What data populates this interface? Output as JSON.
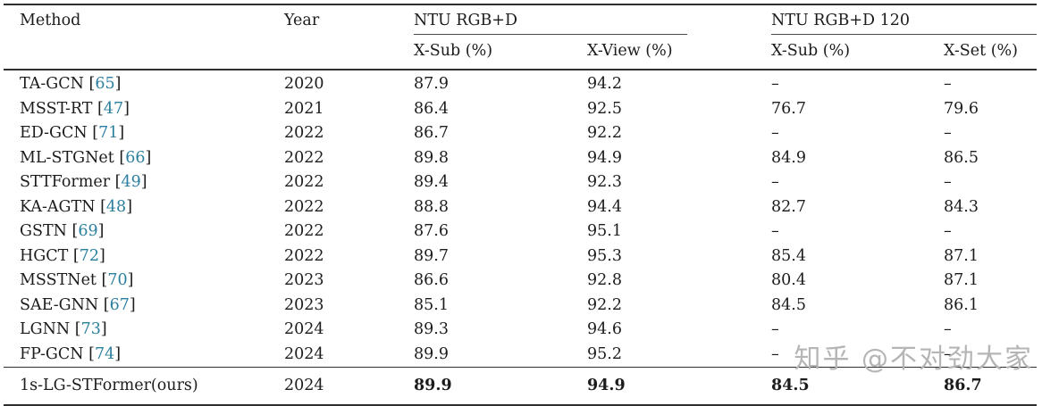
{
  "table": {
    "col_headers": {
      "method": "Method",
      "year": "Year"
    },
    "groups": [
      {
        "label": "NTU RGB+D",
        "subcols": [
          "X-Sub (%)",
          "X-View (%)"
        ]
      },
      {
        "label": "NTU RGB+D 120",
        "subcols": [
          "X-Sub (%)",
          "X-Set (%)"
        ]
      }
    ],
    "rows": [
      {
        "method": "TA-GCN",
        "ref": "65",
        "year": "2020",
        "values": [
          "87.9",
          "94.2",
          "–",
          "–"
        ]
      },
      {
        "method": "MSST-RT",
        "ref": "47",
        "year": "2021",
        "values": [
          "86.4",
          "92.5",
          "76.7",
          "79.6"
        ]
      },
      {
        "method": "ED-GCN",
        "ref": "71",
        "year": "2022",
        "values": [
          "86.7",
          "92.2",
          "–",
          "–"
        ]
      },
      {
        "method": "ML-STGNet",
        "ref": "66",
        "year": "2022",
        "values": [
          "89.8",
          "94.9",
          "84.9",
          "86.5"
        ]
      },
      {
        "method": "STTFormer",
        "ref": "49",
        "year": "2022",
        "values": [
          "89.4",
          "92.3",
          "–",
          "–"
        ]
      },
      {
        "method": "KA-AGTN",
        "ref": "48",
        "year": "2022",
        "values": [
          "88.8",
          "94.4",
          "82.7",
          "84.3"
        ]
      },
      {
        "method": "GSTN",
        "ref": "69",
        "year": "2022",
        "values": [
          "87.6",
          "95.1",
          "–",
          "–"
        ]
      },
      {
        "method": "HGCT",
        "ref": "72",
        "year": "2022",
        "values": [
          "89.7",
          "95.3",
          "85.4",
          "87.1"
        ]
      },
      {
        "method": "MSSTNet",
        "ref": "70",
        "year": "2023",
        "values": [
          "86.6",
          "92.8",
          "80.4",
          "87.1"
        ]
      },
      {
        "method": "SAE-GNN",
        "ref": "67",
        "year": "2023",
        "values": [
          "85.1",
          "92.2",
          "84.5",
          "86.1"
        ]
      },
      {
        "method": "LGNN",
        "ref": "73",
        "year": "2024",
        "values": [
          "89.3",
          "94.6",
          "–",
          "–"
        ]
      },
      {
        "method": "FP-GCN",
        "ref": "74",
        "year": "2024",
        "values": [
          "89.9",
          "95.2",
          "–",
          "–"
        ]
      }
    ],
    "ours_row": {
      "method": "1s-LG-STFormer(ours)",
      "year": "2024",
      "values": [
        "89.9",
        "94.9",
        "84.5",
        "86.7"
      ]
    }
  },
  "watermark": {
    "text": "知乎 @不对劲大家"
  },
  "colors": {
    "citation": "#2b7f9e",
    "text": "#1c1c1c",
    "rule": "#2e2e2e",
    "watermark": "#b5b5b5"
  }
}
